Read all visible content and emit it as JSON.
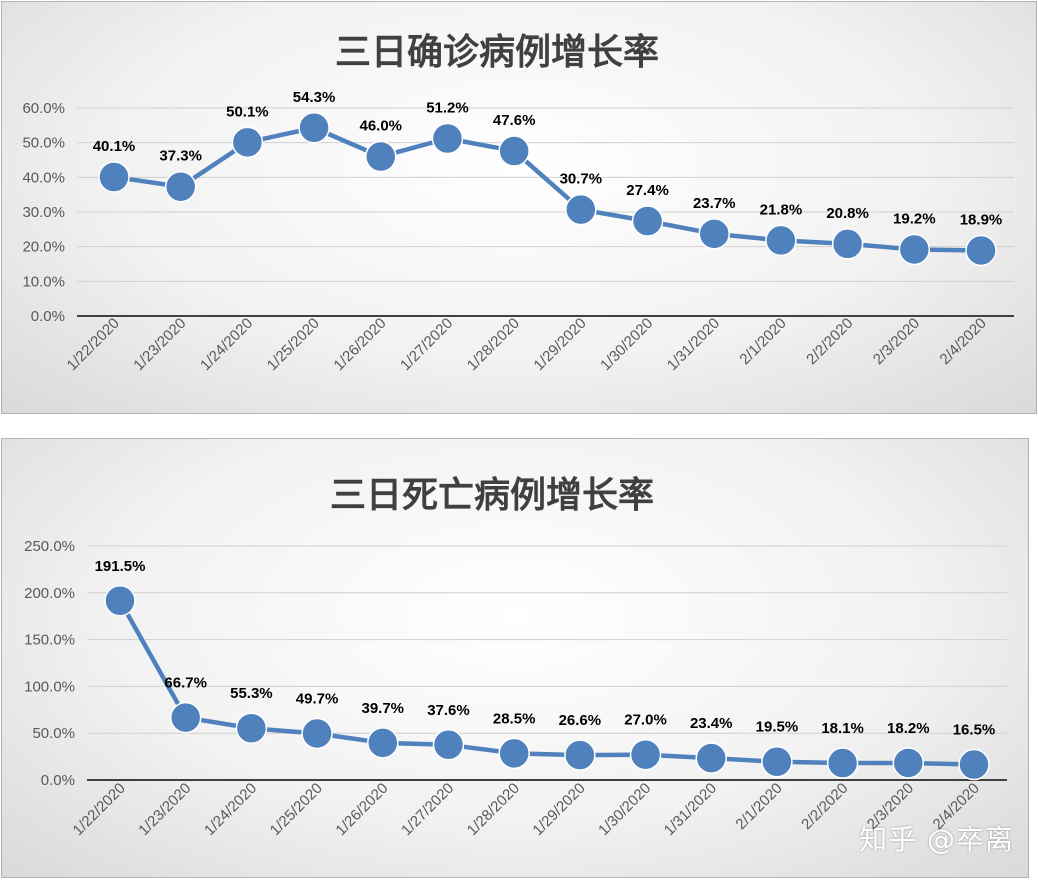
{
  "watermark": "知乎 @卒离",
  "colors": {
    "series": "#4f81bd",
    "axis": "#595959",
    "grid": "#d0d0d0",
    "title": "#404040"
  },
  "chart_data": [
    {
      "type": "line",
      "title": "三日确诊病例增长率",
      "categories": [
        "1/22/2020",
        "1/23/2020",
        "1/24/2020",
        "1/25/2020",
        "1/26/2020",
        "1/27/2020",
        "1/28/2020",
        "1/29/2020",
        "1/30/2020",
        "1/31/2020",
        "2/1/2020",
        "2/2/2020",
        "2/3/2020",
        "2/4/2020"
      ],
      "series": [
        {
          "values": [
            40.1,
            37.3,
            50.1,
            54.3,
            46.0,
            51.2,
            47.6,
            30.7,
            27.4,
            23.7,
            21.8,
            20.8,
            19.2,
            18.9
          ]
        }
      ],
      "data_labels": [
        "40.1%",
        "37.3%",
        "50.1%",
        "54.3%",
        "46.0%",
        "51.2%",
        "47.6%",
        "30.7%",
        "27.4%",
        "23.7%",
        "21.8%",
        "20.8%",
        "19.2%",
        "18.9%"
      ],
      "ylim": [
        0,
        60
      ],
      "yticks": [
        "0.0%",
        "10.0%",
        "20.0%",
        "30.0%",
        "40.0%",
        "50.0%",
        "60.0%"
      ],
      "grid": true,
      "legend": "none"
    },
    {
      "type": "line",
      "title": "三日死亡病例增长率",
      "categories": [
        "1/22/2020",
        "1/23/2020",
        "1/24/2020",
        "1/25/2020",
        "1/26/2020",
        "1/27/2020",
        "1/28/2020",
        "1/29/2020",
        "1/30/2020",
        "1/31/2020",
        "2/1/2020",
        "2/2/2020",
        "2/3/2020",
        "2/4/2020"
      ],
      "series": [
        {
          "values": [
            191.5,
            66.7,
            55.3,
            49.7,
            39.7,
            37.6,
            28.5,
            26.6,
            27.0,
            23.4,
            19.5,
            18.1,
            18.2,
            16.5
          ]
        }
      ],
      "data_labels": [
        "191.5%",
        "66.7%",
        "55.3%",
        "49.7%",
        "39.7%",
        "37.6%",
        "28.5%",
        "26.6%",
        "27.0%",
        "23.4%",
        "19.5%",
        "18.1%",
        "18.2%",
        "16.5%"
      ],
      "ylim": [
        0,
        250
      ],
      "yticks": [
        "0.0%",
        "50.0%",
        "100.0%",
        "150.0%",
        "200.0%",
        "250.0%"
      ],
      "grid": true,
      "legend": "none"
    }
  ]
}
